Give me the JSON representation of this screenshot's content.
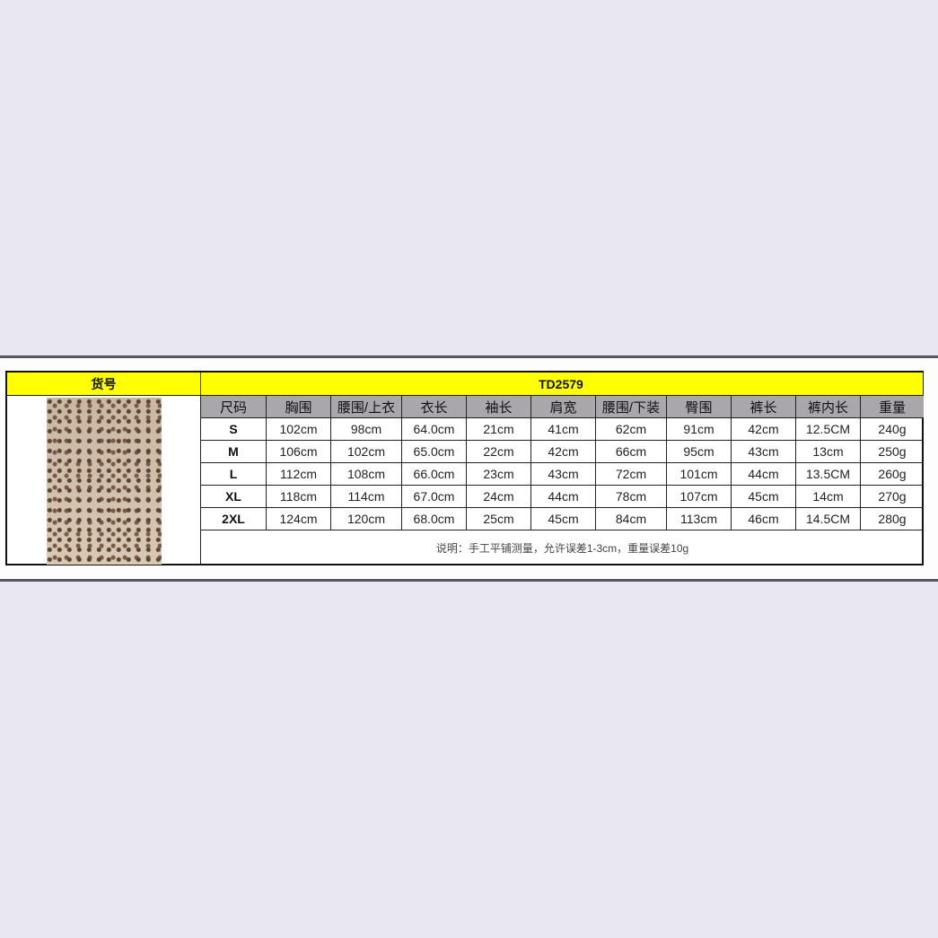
{
  "left_header": "货号",
  "product_code": "TD2579",
  "columns": [
    "尺码",
    "胸围",
    "腰围/上衣",
    "衣长",
    "袖长",
    "肩宽",
    "腰围/下装",
    "臀围",
    "裤长",
    "裤内长",
    "重量"
  ],
  "rows": [
    [
      "S",
      "102cm",
      "98cm",
      "64.0cm",
      "21cm",
      "41cm",
      "62cm",
      "91cm",
      "42cm",
      "12.5CM",
      "240g"
    ],
    [
      "M",
      "106cm",
      "102cm",
      "65.0cm",
      "22cm",
      "42cm",
      "66cm",
      "95cm",
      "43cm",
      "13cm",
      "250g"
    ],
    [
      "L",
      "112cm",
      "108cm",
      "66.0cm",
      "23cm",
      "43cm",
      "72cm",
      "101cm",
      "44cm",
      "13.5CM",
      "260g"
    ],
    [
      "XL",
      "118cm",
      "114cm",
      "67.0cm",
      "24cm",
      "44cm",
      "78cm",
      "107cm",
      "45cm",
      "14cm",
      "270g"
    ],
    [
      "2XL",
      "124cm",
      "120cm",
      "68.0cm",
      "25cm",
      "45cm",
      "84cm",
      "113cm",
      "46cm",
      "14.5CM",
      "280g"
    ]
  ],
  "note": "说明：手工平铺测量，允许误差1-3cm，重量误差10g",
  "colors": {
    "header": "#ffff00",
    "column_header": "#a9a7a9",
    "background": "#e9e7f1"
  }
}
